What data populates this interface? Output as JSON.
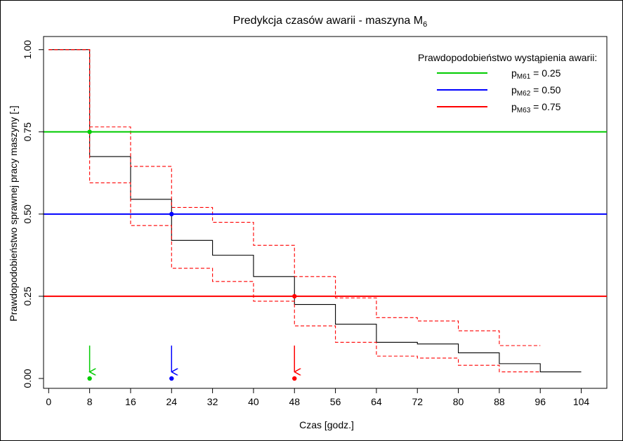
{
  "chart_data": {
    "type": "line",
    "title_main": "Predykcja czasów awarii - maszyna M",
    "title_sub": "6",
    "xlabel": "Czas [godz.]",
    "ylabel": "Prawdopodobieństwo sprawnej pracy maszyny [-]",
    "xlim": [
      -1,
      109
    ],
    "ylim": [
      -0.03,
      1.04
    ],
    "x_ticks": [
      0,
      8,
      16,
      24,
      32,
      40,
      48,
      56,
      64,
      72,
      80,
      88,
      96,
      104
    ],
    "x_tick_labels": [
      "0",
      "8",
      "16",
      "24",
      "32",
      "40",
      "48",
      "56",
      "64",
      "72",
      "80",
      "88",
      "96",
      "104"
    ],
    "y_ticks": [
      0,
      0.25,
      0.5,
      0.75,
      1.0
    ],
    "y_tick_labels": [
      "0.00",
      "0.25",
      "0.50",
      "0.75",
      "1.00"
    ],
    "grid": false,
    "legend": {
      "title": "Prawdopodobieństwo wystąpienia awarii:",
      "placement": "top-right",
      "entries": [
        {
          "p": "p",
          "sub": "M61",
          "value": " = 0.25",
          "color": "#00cc00"
        },
        {
          "p": "p",
          "sub": "M62",
          "value": " = 0.50",
          "color": "#0000ff"
        },
        {
          "p": "p",
          "sub": "M63",
          "value": " = 0.75",
          "color": "#ff0000"
        }
      ]
    },
    "series": [
      {
        "kind": "step",
        "color": "#000000",
        "dash": false,
        "x": [
          0,
          8,
          16,
          24,
          32,
          40,
          48,
          56,
          64,
          72,
          80,
          88,
          96,
          104
        ],
        "y": [
          1.0,
          0.675,
          0.545,
          0.42,
          0.375,
          0.31,
          0.225,
          0.165,
          0.11,
          0.105,
          0.078,
          0.045,
          0.02,
          0.02
        ]
      },
      {
        "kind": "step",
        "color": "#ff0000",
        "dash": true,
        "x": [
          0,
          8,
          16,
          24,
          32,
          40,
          48,
          56,
          64,
          72,
          80,
          88,
          96
        ],
        "y": [
          1.0,
          0.765,
          0.645,
          0.52,
          0.475,
          0.405,
          0.31,
          0.245,
          0.185,
          0.175,
          0.145,
          0.1,
          0.1
        ]
      },
      {
        "kind": "step",
        "color": "#ff0000",
        "dash": true,
        "x": [
          0,
          8,
          16,
          24,
          32,
          40,
          48,
          56,
          64,
          72,
          80,
          88,
          96
        ],
        "y": [
          1.0,
          0.595,
          0.465,
          0.335,
          0.295,
          0.235,
          0.16,
          0.11,
          0.068,
          0.062,
          0.04,
          0.02,
          0.02
        ]
      }
    ],
    "hlines": [
      {
        "y": 0.75,
        "color": "#00cc00"
      },
      {
        "y": 0.5,
        "color": "#0000ff"
      },
      {
        "y": 0.25,
        "color": "#ff0000"
      }
    ],
    "intersection_points": [
      {
        "x": 8,
        "y": 0.75,
        "color": "#00cc00"
      },
      {
        "x": 24,
        "y": 0.5,
        "color": "#0000ff"
      },
      {
        "x": 48,
        "y": 0.25,
        "color": "#ff0000"
      }
    ],
    "arrows": [
      {
        "x": 8,
        "y_from": 0.1,
        "y_to": 0.02,
        "color": "#00cc00"
      },
      {
        "x": 24,
        "y_from": 0.1,
        "y_to": 0.02,
        "color": "#0000ff"
      },
      {
        "x": 48,
        "y_from": 0.1,
        "y_to": 0.02,
        "color": "#ff0000"
      }
    ],
    "base_points": [
      {
        "x": 8,
        "y": 0.0,
        "color": "#00cc00"
      },
      {
        "x": 24,
        "y": 0.0,
        "color": "#0000ff"
      },
      {
        "x": 48,
        "y": 0.0,
        "color": "#ff0000"
      }
    ]
  }
}
